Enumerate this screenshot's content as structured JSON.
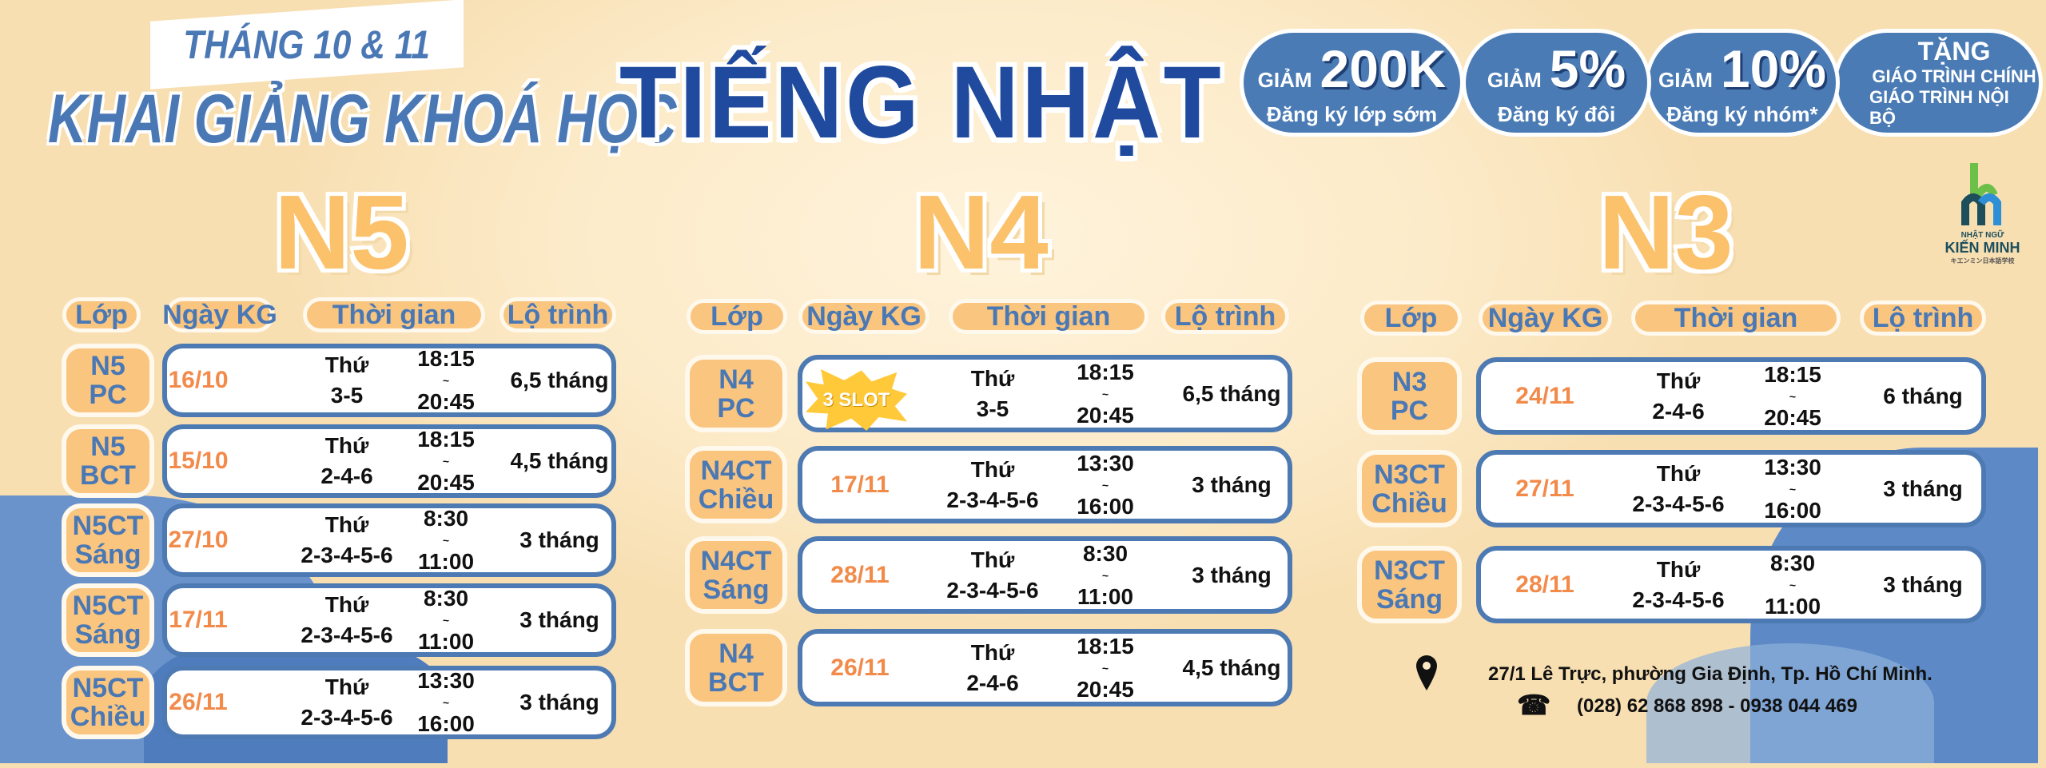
{
  "header": {
    "subtitle": "THÁNG 10 & 11",
    "title": "KHAI GIẢNG KHOÁ HỌC",
    "main_title": "TIẾNG NHẬT"
  },
  "promos": [
    {
      "prefix": "GIẢM",
      "value": "200K",
      "desc": "Đăng ký lớp sớm"
    },
    {
      "prefix": "GIẢM",
      "value": "5%",
      "desc": "Đăng ký đôi"
    },
    {
      "prefix": "GIẢM",
      "value": "10%",
      "desc": "Đăng ký nhóm*"
    }
  ],
  "gift": {
    "title": "TẶNG",
    "line1": "GIÁO TRÌNH CHÍNH",
    "line2": "GIÁO TRÌNH NỘI BỘ"
  },
  "logo": {
    "small": "NHẬT NGỮ",
    "name": "KIẾN MINH",
    "jp": "キエンミン日本語学校"
  },
  "columns": [
    "Lớp",
    "Ngày KG",
    "Thời gian",
    "Lộ trình"
  ],
  "day_label": "Thứ",
  "badge": "3 SLOT",
  "levels": [
    {
      "name": "N5",
      "rows": [
        {
          "cls1": "N5",
          "cls2": "PC",
          "date": "16/10",
          "days": "3-5",
          "start": "18:15",
          "end": "20:45",
          "duration": "6,5 tháng"
        },
        {
          "cls1": "N5",
          "cls2": "BCT",
          "date": "15/10",
          "days": "2-4-6",
          "start": "18:15",
          "end": "20:45",
          "duration": "4,5 tháng"
        },
        {
          "cls1": "N5CT",
          "cls2": "Sáng",
          "date": "27/10",
          "days": "2-3-4-5-6",
          "start": "8:30",
          "end": "11:00",
          "duration": "3 tháng"
        },
        {
          "cls1": "N5CT",
          "cls2": "Sáng",
          "date": "17/11",
          "days": "2-3-4-5-6",
          "start": "8:30",
          "end": "11:00",
          "duration": "3 tháng"
        },
        {
          "cls1": "N5CT",
          "cls2": "Chiều",
          "date": "26/11",
          "days": "2-3-4-5-6",
          "start": "13:30",
          "end": "16:00",
          "duration": "3 tháng"
        }
      ]
    },
    {
      "name": "N4",
      "rows": [
        {
          "cls1": "N4",
          "cls2": "PC",
          "date": "",
          "days": "3-5",
          "start": "18:15",
          "end": "20:45",
          "duration": "6,5 tháng"
        },
        {
          "cls1": "N4CT",
          "cls2": "Chiều",
          "date": "17/11",
          "days": "2-3-4-5-6",
          "start": "13:30",
          "end": "16:00",
          "duration": "3 tháng"
        },
        {
          "cls1": "N4CT",
          "cls2": "Sáng",
          "date": "28/11",
          "days": "2-3-4-5-6",
          "start": "8:30",
          "end": "11:00",
          "duration": "3 tháng"
        },
        {
          "cls1": "N4",
          "cls2": "BCT",
          "date": "26/11",
          "days": "2-4-6",
          "start": "18:15",
          "end": "20:45",
          "duration": "4,5 tháng"
        }
      ]
    },
    {
      "name": "N3",
      "rows": [
        {
          "cls1": "N3",
          "cls2": "PC",
          "date": "24/11",
          "days": "2-4-6",
          "start": "18:15",
          "end": "20:45",
          "duration": "6 tháng"
        },
        {
          "cls1": "N3CT",
          "cls2": "Chiều",
          "date": "27/11",
          "days": "2-3-4-5-6",
          "start": "13:30",
          "end": "16:00",
          "duration": "3 tháng"
        },
        {
          "cls1": "N3CT",
          "cls2": "Sáng",
          "date": "28/11",
          "days": "2-3-4-5-6",
          "start": "8:30",
          "end": "11:00",
          "duration": "3 tháng"
        }
      ]
    }
  ],
  "contact": {
    "address": "27/1 Lê Trực, phường Gia Định, Tp. Hồ Chí Minh.",
    "phone": "(028) 62 868 898 - 0938 044 469"
  },
  "colors": {
    "accent_blue": "#4a7bb5",
    "title_blue": "#1f4a9e",
    "orange": "#f9c57f",
    "date_orange": "#f28a4a"
  }
}
